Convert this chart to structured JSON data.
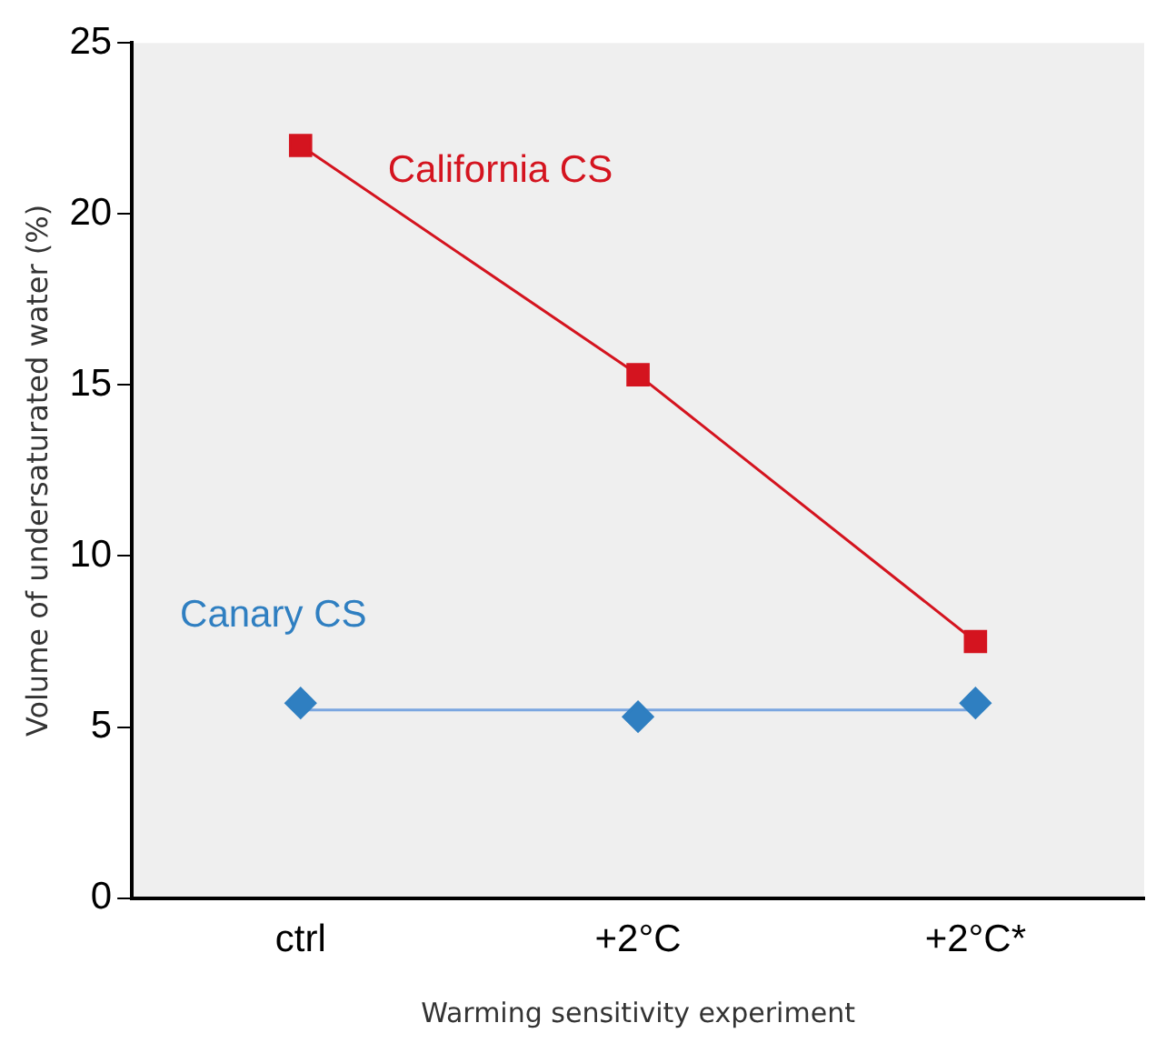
{
  "chart_data": {
    "type": "line",
    "xlabel": "Warming sensitivity experiment",
    "ylabel": "Volume of undersaturated water (%)",
    "categories": [
      "ctrl",
      "+2°C",
      "+2°C*"
    ],
    "ylim": [
      0,
      25
    ],
    "yticks": [
      0,
      5,
      10,
      15,
      20,
      25
    ],
    "grid": false,
    "legend": false,
    "series": [
      {
        "name": "California CS",
        "color": "#d4141f",
        "values": [
          22,
          15.3,
          7.5
        ],
        "marker": "square"
      },
      {
        "name": "Canary CS",
        "color": "#2f7fc1",
        "type": "scatter",
        "values": [
          5.7,
          5.3,
          5.7
        ],
        "marker": "diamond"
      },
      {
        "type": "line",
        "color": "#7aa6e0",
        "values": [
          5.5,
          5.5,
          5.5
        ],
        "marker": "none"
      }
    ]
  }
}
